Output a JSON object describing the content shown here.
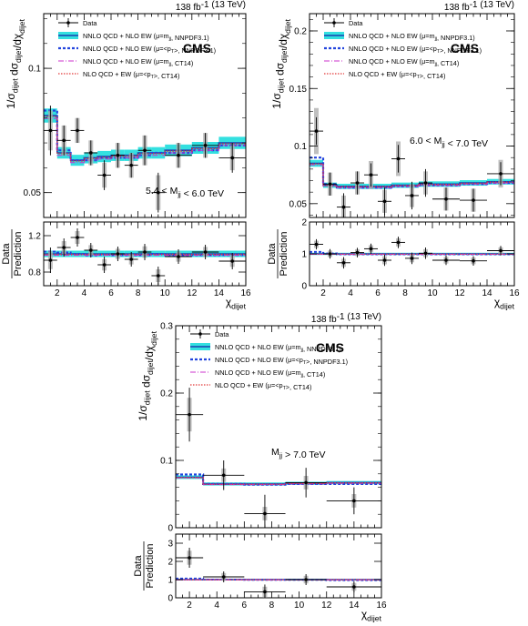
{
  "figure": {
    "lumi_label": "138 fb",
    "lumi_sup": "-1",
    "lumi_energy": " (13 TeV)",
    "experiment": "CMS",
    "xlabel_main": "χ",
    "xlabel_sub": "dijet",
    "ylabel_parts": [
      "1/σ",
      "dijet",
      " dσ",
      "dijet",
      "/dχ",
      "dijet"
    ],
    "ratio_ylabel_top": "Data",
    "ratio_ylabel_bottom": "Prediction"
  },
  "legend": [
    {
      "key": "data",
      "label": "Data"
    },
    {
      "key": "nnlo_mjj",
      "label": "NNLO QCD + NLO EW (μ=m",
      "sub": "jj",
      "tail": ", NNPDF3.1)"
    },
    {
      "key": "nnlo_pt",
      "label": "NNLO QCD + NLO EW (μ=<p",
      "sub": "T",
      "tail": ">, NNPDF3.1)"
    },
    {
      "key": "nnlo_ct14",
      "label": "NNLO QCD + NLO EW (μ=m",
      "sub": "jj",
      "tail": ", CT14)"
    },
    {
      "key": "nlo_ct14",
      "label": "NLO QCD + EW (μ=<p",
      "sub": "T",
      "tail": ">, CT14)"
    }
  ],
  "colors": {
    "data": "#000000",
    "band": "#33e0e0",
    "nnlo_mjj": "#1a3fb0",
    "nnlo_pt": "#2244dd",
    "nnlo_ct14": "#cc33cc",
    "nlo_ct14": "#e23a3a",
    "syst": "#aaaaaa"
  },
  "chart_data": [
    {
      "type": "line",
      "id": "p1",
      "mass_label": "5.4 < M",
      "mass_sub": "jj",
      "mass_tail": " < 6.0 TeV",
      "xlim": [
        1,
        16
      ],
      "xticks": [
        2,
        4,
        6,
        8,
        10,
        12,
        14,
        16
      ],
      "ylim": [
        0.04,
        0.122
      ],
      "yticks": [
        0.05,
        0.1
      ],
      "yticklabels": [
        "0.05",
        "0.1"
      ],
      "ratio_ylim": [
        0.65,
        1.35
      ],
      "ratio_yticks": [
        0.8,
        1.2
      ],
      "ratio_yticklabels": [
        "0.8",
        "1.2"
      ],
      "bin_edges": [
        1,
        2,
        3,
        4,
        5,
        6,
        7,
        8,
        9,
        10,
        12,
        14,
        16
      ],
      "theory": [
        0.081,
        0.066,
        0.063,
        0.064,
        0.0645,
        0.065,
        0.065,
        0.066,
        0.066,
        0.067,
        0.068,
        0.07
      ],
      "theory_alt": [
        0.083,
        0.067,
        0.063,
        0.063,
        0.064,
        0.064,
        0.064,
        0.065,
        0.066,
        0.066,
        0.067,
        0.069
      ],
      "data": [
        {
          "x": 1.5,
          "y": 0.075,
          "err": 0.01,
          "sys": 0.008,
          "ratio": 0.93,
          "rerr": 0.14
        },
        {
          "x": 2.5,
          "y": 0.071,
          "err": 0.006,
          "sys": 0.006,
          "ratio": 1.07,
          "rerr": 0.1
        },
        {
          "x": 3.5,
          "y": 0.075,
          "err": 0.005,
          "sys": 0.005,
          "ratio": 1.18,
          "rerr": 0.1
        },
        {
          "x": 4.5,
          "y": 0.066,
          "err": 0.005,
          "sys": 0.005,
          "ratio": 1.04,
          "rerr": 0.08
        },
        {
          "x": 5.5,
          "y": 0.057,
          "err": 0.006,
          "sys": 0.005,
          "ratio": 0.88,
          "rerr": 0.09
        },
        {
          "x": 6.5,
          "y": 0.065,
          "err": 0.005,
          "sys": 0.005,
          "ratio": 1.0,
          "rerr": 0.08
        },
        {
          "x": 7.5,
          "y": 0.061,
          "err": 0.005,
          "sys": 0.005,
          "ratio": 0.94,
          "rerr": 0.08
        },
        {
          "x": 8.5,
          "y": 0.067,
          "err": 0.006,
          "sys": 0.006,
          "ratio": 1.02,
          "rerr": 0.09
        },
        {
          "x": 9.5,
          "y": 0.05,
          "err": 0.008,
          "sys": 0.007,
          "ratio": 0.76,
          "rerr": 0.1
        },
        {
          "x": 11,
          "y": 0.065,
          "err": 0.005,
          "sys": 0.005,
          "ratio": 0.97,
          "rerr": 0.08
        },
        {
          "x": 13,
          "y": 0.069,
          "err": 0.005,
          "sys": 0.005,
          "ratio": 1.02,
          "rerr": 0.08
        },
        {
          "x": 15,
          "y": 0.064,
          "err": 0.006,
          "sys": 0.005,
          "ratio": 0.92,
          "rerr": 0.09
        }
      ]
    },
    {
      "type": "line",
      "id": "p2",
      "mass_label": "6.0 < M",
      "mass_sub": "jj",
      "mass_tail": " < 7.0 TeV",
      "xlim": [
        1,
        16
      ],
      "xticks": [
        2,
        4,
        6,
        8,
        10,
        12,
        14,
        16
      ],
      "ylim": [
        0.038,
        0.215
      ],
      "yticks": [
        0.05,
        0.1,
        0.15,
        0.2
      ],
      "yticklabels": [
        "0.05",
        "0.1",
        "0.15",
        "0.2"
      ],
      "ratio_ylim": [
        0,
        2
      ],
      "ratio_yticks": [
        0,
        1,
        2
      ],
      "ratio_yticklabels": [
        "0",
        "1",
        "2"
      ],
      "bin_edges": [
        1,
        2,
        3,
        4,
        5,
        6,
        7,
        8,
        9,
        10,
        12,
        14,
        16
      ],
      "theory": [
        0.085,
        0.066,
        0.065,
        0.065,
        0.065,
        0.065,
        0.066,
        0.066,
        0.067,
        0.067,
        0.068,
        0.069
      ],
      "theory_alt": [
        0.09,
        0.067,
        0.064,
        0.064,
        0.064,
        0.064,
        0.065,
        0.065,
        0.066,
        0.066,
        0.067,
        0.068
      ],
      "data": [
        {
          "x": 1.5,
          "y": 0.113,
          "err": 0.012,
          "sys": 0.02,
          "ratio": 1.3,
          "rerr": 0.16
        },
        {
          "x": 2.5,
          "y": 0.067,
          "err": 0.01,
          "sys": 0.01,
          "ratio": 1.0,
          "rerr": 0.15
        },
        {
          "x": 3.5,
          "y": 0.047,
          "err": 0.012,
          "sys": 0.01,
          "ratio": 0.72,
          "rerr": 0.18
        },
        {
          "x": 4.5,
          "y": 0.068,
          "err": 0.01,
          "sys": 0.01,
          "ratio": 1.04,
          "rerr": 0.15
        },
        {
          "x": 5.5,
          "y": 0.075,
          "err": 0.01,
          "sys": 0.012,
          "ratio": 1.16,
          "rerr": 0.16
        },
        {
          "x": 6.5,
          "y": 0.052,
          "err": 0.012,
          "sys": 0.01,
          "ratio": 0.8,
          "rerr": 0.18
        },
        {
          "x": 7.5,
          "y": 0.089,
          "err": 0.012,
          "sys": 0.015,
          "ratio": 1.36,
          "rerr": 0.18
        },
        {
          "x": 8.5,
          "y": 0.057,
          "err": 0.012,
          "sys": 0.01,
          "ratio": 0.86,
          "rerr": 0.18
        },
        {
          "x": 9.5,
          "y": 0.068,
          "err": 0.012,
          "sys": 0.01,
          "ratio": 1.02,
          "rerr": 0.18
        },
        {
          "x": 11,
          "y": 0.054,
          "err": 0.01,
          "sys": 0.01,
          "ratio": 0.8,
          "rerr": 0.15
        },
        {
          "x": 13,
          "y": 0.053,
          "err": 0.01,
          "sys": 0.01,
          "ratio": 0.78,
          "rerr": 0.15
        },
        {
          "x": 15,
          "y": 0.076,
          "err": 0.01,
          "sys": 0.012,
          "ratio": 1.1,
          "rerr": 0.15
        }
      ]
    },
    {
      "type": "line",
      "id": "p3",
      "mass_label": "M",
      "mass_sub": "jj",
      "mass_tail": " > 7.0 TeV",
      "xlim": [
        1,
        16
      ],
      "xticks": [
        2,
        4,
        6,
        8,
        10,
        12,
        14,
        16
      ],
      "ylim": [
        0,
        0.3
      ],
      "yticks": [
        0,
        0.1,
        0.2,
        0.3
      ],
      "yticklabels": [
        "0",
        "0.1",
        "0.2",
        "0.3"
      ],
      "ratio_ylim": [
        0,
        3.5
      ],
      "ratio_yticks": [
        0,
        1,
        2,
        3
      ],
      "ratio_yticklabels": [
        "0",
        "1",
        "2",
        "3"
      ],
      "bin_edges": [
        1,
        3,
        6,
        9,
        12,
        16
      ],
      "theory": [
        0.075,
        0.065,
        0.065,
        0.066,
        0.067
      ],
      "theory_alt": [
        0.079,
        0.065,
        0.064,
        0.065,
        0.065
      ],
      "data": [
        {
          "x": 2,
          "y": 0.168,
          "err": 0.04,
          "sys": 0.025,
          "ratio": 2.2,
          "rerr": 0.55
        },
        {
          "x": 4.5,
          "y": 0.078,
          "err": 0.022,
          "sys": 0.01,
          "ratio": 1.15,
          "rerr": 0.3
        },
        {
          "x": 7.5,
          "y": 0.021,
          "err": 0.028,
          "sys": 0.01,
          "ratio": 0.33,
          "rerr": 0.4
        },
        {
          "x": 10.5,
          "y": 0.067,
          "err": 0.022,
          "sys": 0.01,
          "ratio": 1.0,
          "rerr": 0.3
        },
        {
          "x": 14,
          "y": 0.04,
          "err": 0.02,
          "sys": 0.01,
          "ratio": 0.6,
          "rerr": 0.3
        }
      ]
    }
  ]
}
